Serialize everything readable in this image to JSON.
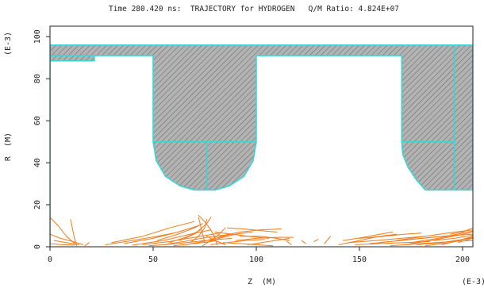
{
  "header": {
    "title": "Time 280.420 ns:  TRAJECTORY for HYDROGEN   Q/M Ratio: 4.824E+07"
  },
  "chart_data": {
    "type": "line",
    "title": "Time 280.420 ns:  TRAJECTORY for HYDROGEN   Q/M Ratio: 4.824E+07",
    "xlabel": "Z  (M)",
    "ylabel": "R  (M)",
    "x_scale_label": "(E-3)",
    "y_scale_label": "(E-3)",
    "xlim": [
      0,
      205
    ],
    "ylim": [
      0,
      105
    ],
    "x_ticks": [
      0,
      50,
      100,
      150,
      200
    ],
    "y_ticks": [
      0,
      20,
      40,
      60,
      80,
      100
    ],
    "colors": {
      "frame": "#222222",
      "electrode_fill": "#b3b3b3",
      "electrode_hatch": "#6f6f6f",
      "electrode_outline": "#3ad6d6",
      "trajectory": "#f07a18"
    },
    "series": [
      {
        "kind": "electrode",
        "points": [
          [
            0,
            96
          ],
          [
            205,
            96
          ],
          [
            205,
            27
          ],
          [
            196,
            27
          ],
          [
            182,
            27
          ],
          [
            177.5,
            32
          ],
          [
            173.5,
            38
          ],
          [
            171,
            44
          ],
          [
            170.5,
            50
          ],
          [
            170.5,
            91
          ],
          [
            100,
            91
          ],
          [
            100,
            50
          ],
          [
            98.5,
            41
          ],
          [
            94,
            33.5
          ],
          [
            87,
            29
          ],
          [
            80,
            27
          ],
          [
            70,
            27
          ],
          [
            63,
            29
          ],
          [
            56,
            33.5
          ],
          [
            51.5,
            41
          ],
          [
            50,
            50
          ],
          [
            50,
            91
          ],
          [
            0,
            91
          ]
        ]
      },
      {
        "kind": "electrode",
        "points": [
          [
            0,
            91
          ],
          [
            21.5,
            91
          ],
          [
            21.5,
            88.5
          ],
          [
            0,
            88.5
          ]
        ]
      },
      {
        "kind": "outline",
        "points": [
          [
            50,
            50
          ],
          [
            100,
            50
          ]
        ]
      },
      {
        "kind": "outline",
        "points": [
          [
            76,
            50
          ],
          [
            76,
            27
          ]
        ]
      },
      {
        "kind": "outline",
        "points": [
          [
            170.5,
            50
          ],
          [
            196,
            50
          ]
        ]
      },
      {
        "kind": "outline",
        "points": [
          [
            196,
            96
          ],
          [
            196,
            27
          ]
        ]
      },
      {
        "kind": "outline",
        "points": [
          [
            0,
            96
          ],
          [
            0,
            0
          ]
        ]
      },
      {
        "kind": "trajectory",
        "paths": [
          [
            [
              0,
              14
            ],
            [
              4,
              10
            ],
            [
              8,
              5
            ],
            [
              12,
              1.5
            ]
          ],
          [
            [
              0,
              6
            ],
            [
              5,
              4
            ],
            [
              11,
              2.5
            ],
            [
              16,
              1
            ]
          ],
          [
            [
              2,
              3
            ],
            [
              8,
              2
            ],
            [
              14,
              1
            ]
          ],
          [
            [
              10,
              13
            ],
            [
              11,
              8
            ],
            [
              12,
              3.5
            ],
            [
              13,
              0.5
            ]
          ],
          [
            [
              17,
              0.5
            ],
            [
              19,
              2
            ]
          ],
          [
            [
              0,
              1.5
            ],
            [
              6,
              1
            ],
            [
              12,
              0.8
            ]
          ],
          [
            [
              27,
              1
            ],
            [
              40,
              3
            ],
            [
              52,
              5
            ],
            [
              60,
              6.5
            ]
          ],
          [
            [
              30,
              2
            ],
            [
              45,
              5
            ],
            [
              58,
              9
            ],
            [
              70,
              12
            ]
          ],
          [
            [
              36,
              1.5
            ],
            [
              50,
              4
            ],
            [
              62,
              7
            ],
            [
              72,
              10
            ]
          ],
          [
            [
              40,
              0.8
            ],
            [
              55,
              3
            ],
            [
              68,
              6
            ],
            [
              78,
              8
            ]
          ],
          [
            [
              45,
              1
            ],
            [
              58,
              2.5
            ],
            [
              70,
              4.5
            ],
            [
              82,
              6.5
            ]
          ],
          [
            [
              48,
              0.5
            ],
            [
              62,
              1.5
            ],
            [
              75,
              3
            ],
            [
              88,
              4
            ]
          ],
          [
            [
              52,
              3
            ],
            [
              62,
              6
            ],
            [
              70,
              9
            ],
            [
              74,
              11
            ]
          ],
          [
            [
              55,
              1
            ],
            [
              65,
              2.5
            ],
            [
              76,
              4.5
            ],
            [
              84,
              5.5
            ]
          ],
          [
            [
              58,
              2
            ],
            [
              67,
              5
            ],
            [
              73,
              8
            ]
          ],
          [
            [
              60,
              0.5
            ],
            [
              70,
              1.5
            ],
            [
              80,
              2.8
            ]
          ],
          [
            [
              63,
              3
            ],
            [
              70,
              6
            ],
            [
              76,
              11
            ],
            [
              78,
              14
            ]
          ],
          [
            [
              66,
              1
            ],
            [
              74,
              2.5
            ],
            [
              82,
              4.5
            ],
            [
              88,
              6
            ]
          ],
          [
            [
              68,
              2
            ],
            [
              72,
              5
            ],
            [
              75,
              9
            ],
            [
              76,
              13
            ]
          ],
          [
            [
              72,
              15
            ],
            [
              75,
              12
            ],
            [
              78,
              8
            ],
            [
              80,
              4
            ],
            [
              81,
              1
            ]
          ],
          [
            [
              72,
              14
            ],
            [
              73,
              10
            ],
            [
              74,
              6
            ],
            [
              75,
              2
            ]
          ],
          [
            [
              74,
              0.5
            ],
            [
              78,
              3
            ],
            [
              82,
              6
            ],
            [
              85,
              9
            ]
          ],
          [
            [
              76,
              2
            ],
            [
              82,
              4
            ],
            [
              90,
              6
            ],
            [
              98,
              7
            ]
          ],
          [
            [
              76,
              5
            ],
            [
              80,
              3
            ],
            [
              85,
              1
            ]
          ],
          [
            [
              78,
              1
            ],
            [
              86,
              2
            ],
            [
              95,
              3
            ],
            [
              104,
              3.5
            ]
          ],
          [
            [
              80,
              7
            ],
            [
              88,
              6
            ],
            [
              96,
              5
            ],
            [
              106,
              4
            ]
          ],
          [
            [
              82,
              5
            ],
            [
              92,
              7
            ],
            [
              102,
              8
            ],
            [
              112,
              8.5
            ]
          ],
          [
            [
              84,
              2
            ],
            [
              92,
              1.5
            ],
            [
              100,
              1
            ],
            [
              108,
              0.5
            ]
          ],
          [
            [
              86,
              9
            ],
            [
              94,
              8.5
            ],
            [
              104,
              7.5
            ],
            [
              110,
              7
            ]
          ],
          [
            [
              90,
              3
            ],
            [
              100,
              4
            ],
            [
              110,
              4.5
            ],
            [
              118,
              4.5
            ]
          ],
          [
            [
              92,
              5
            ],
            [
              102,
              5
            ],
            [
              110,
              4
            ],
            [
              116,
              3
            ]
          ],
          [
            [
              96,
              1
            ],
            [
              106,
              2.5
            ],
            [
              116,
              4
            ]
          ],
          [
            [
              115,
              2.5
            ],
            [
              117,
              1
            ]
          ],
          [
            [
              122,
              3
            ],
            [
              124,
              1.5
            ]
          ],
          [
            [
              128,
              2.5
            ],
            [
              130,
              3.5
            ]
          ],
          [
            [
              133,
              1.5
            ],
            [
              136,
              5
            ]
          ],
          [
            [
              140,
              1
            ],
            [
              150,
              3
            ],
            [
              160,
              5
            ],
            [
              168,
              6
            ]
          ],
          [
            [
              142,
              3
            ],
            [
              152,
              4.5
            ],
            [
              160,
              6
            ],
            [
              166,
              7
            ]
          ],
          [
            [
              145,
              2
            ],
            [
              158,
              3
            ],
            [
              170,
              4
            ],
            [
              182,
              5
            ]
          ],
          [
            [
              148,
              1
            ],
            [
              160,
              1.5
            ],
            [
              172,
              2
            ],
            [
              184,
              2.5
            ]
          ],
          [
            [
              150,
              4
            ],
            [
              162,
              5
            ],
            [
              172,
              6
            ],
            [
              180,
              6.5
            ]
          ],
          [
            [
              155,
              1.5
            ],
            [
              170,
              3
            ],
            [
              185,
              4.5
            ],
            [
              196,
              5.5
            ]
          ],
          [
            [
              160,
              2
            ],
            [
              175,
              3.5
            ],
            [
              190,
              5
            ],
            [
              205,
              6
            ]
          ],
          [
            [
              165,
              0.5
            ],
            [
              180,
              1.5
            ],
            [
              195,
              2.5
            ],
            [
              205,
              3
            ]
          ],
          [
            [
              168,
              3
            ],
            [
              182,
              5
            ],
            [
              196,
              7
            ],
            [
              205,
              8
            ]
          ],
          [
            [
              172,
              1
            ],
            [
              185,
              3
            ],
            [
              198,
              5.5
            ],
            [
              205,
              7
            ]
          ],
          [
            [
              175,
              2
            ],
            [
              188,
              4
            ],
            [
              200,
              6.5
            ],
            [
              205,
              7.5
            ]
          ],
          [
            [
              178,
              1
            ],
            [
              190,
              2
            ],
            [
              200,
              3.5
            ],
            [
              205,
              4
            ]
          ],
          [
            [
              182,
              0.5
            ],
            [
              194,
              2
            ],
            [
              205,
              4.5
            ]
          ],
          [
            [
              186,
              3
            ],
            [
              196,
              4
            ],
            [
              205,
              5.5
            ]
          ],
          [
            [
              190,
              1
            ],
            [
              198,
              3
            ],
            [
              205,
              5
            ]
          ],
          [
            [
              194,
              6
            ],
            [
              200,
              7
            ],
            [
              205,
              9
            ]
          ],
          [
            [
              198,
              2
            ],
            [
              203,
              3.5
            ],
            [
              205,
              4
            ]
          ]
        ]
      }
    ]
  }
}
